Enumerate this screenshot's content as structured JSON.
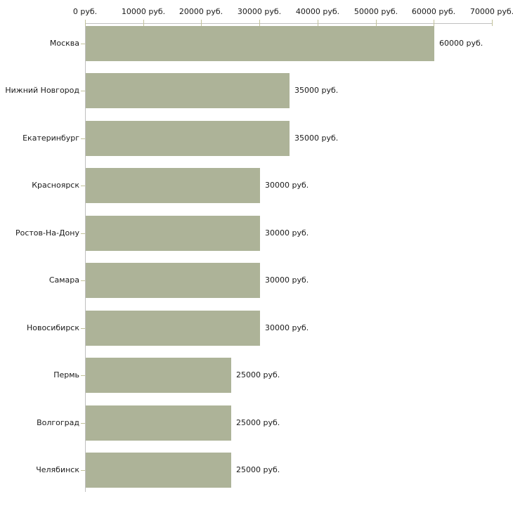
{
  "chart_data": {
    "type": "bar",
    "orientation": "horizontal",
    "title": "",
    "categories": [
      "Москва",
      "Нижний Новгород",
      "Екатеринбург",
      "Красноярск",
      "Ростов-На-Дону",
      "Самара",
      "Новосибирск",
      "Пермь",
      "Волгоград",
      "Челябинск"
    ],
    "values": [
      60000,
      35000,
      35000,
      30000,
      30000,
      30000,
      30000,
      25000,
      25000,
      25000
    ],
    "value_labels": [
      "60000 руб.",
      "35000 руб.",
      "35000 руб.",
      "30000 руб.",
      "30000 руб.",
      "30000 руб.",
      "30000 руб.",
      "25000 руб.",
      "25000 руб.",
      "25000 руб."
    ],
    "x_axis": {
      "position": "top",
      "min": 0,
      "max": 70000,
      "tick_values": [
        0,
        10000,
        20000,
        30000,
        40000,
        50000,
        60000,
        70000
      ],
      "tick_labels": [
        "0 руб.",
        "10000 руб.",
        "20000 руб.",
        "30000 руб.",
        "40000 руб.",
        "50000 руб.",
        "60000 руб.",
        "70000 руб."
      ],
      "unit": "руб."
    },
    "ylabel": "",
    "xlabel": "",
    "legend": "none",
    "grid": false,
    "colors": {
      "bar": "#adb398",
      "axis_line": "#c0c0c0",
      "tick": "#c2c29a",
      "text": "#1a1a1a",
      "background": "#ffffff"
    }
  }
}
